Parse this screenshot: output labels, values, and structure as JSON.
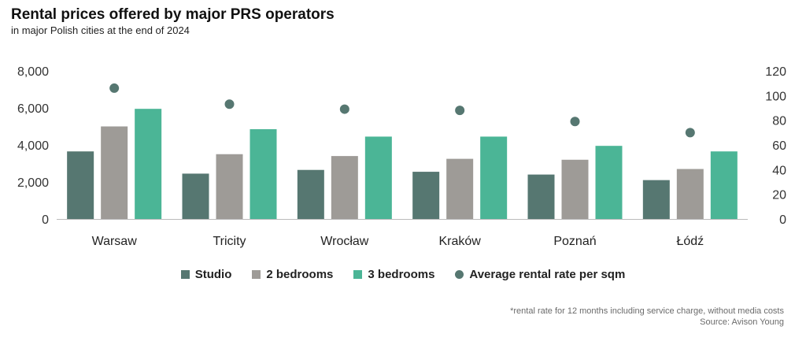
{
  "title": "Rental prices offered by major PRS operators",
  "subtitle": "in major Polish cities at the end of 2024",
  "note1": "*rental rate for 12 months including service charge, without media costs",
  "note2": "Source: Avison Young",
  "colors": {
    "studio": "#567771",
    "two_bed": "#9e9b97",
    "three_bed": "#4bb596",
    "avg": "#567771",
    "axis": "#bbbbbb"
  },
  "chart_data": {
    "type": "bar",
    "title": "Rental prices offered by major PRS operators",
    "subtitle": "in major Polish cities at the end of 2024",
    "categories": [
      "Warsaw",
      "Tricity",
      "Wrocław",
      "Kraków",
      "Poznań",
      "Łódź"
    ],
    "series": [
      {
        "name": "Studio",
        "type": "bar",
        "axis": "left",
        "values": [
          3650,
          2450,
          2650,
          2550,
          2400,
          2100
        ]
      },
      {
        "name": "2 bedrooms",
        "type": "bar",
        "axis": "left",
        "values": [
          5000,
          3500,
          3400,
          3250,
          3200,
          2700
        ]
      },
      {
        "name": "3 bedrooms",
        "type": "bar",
        "axis": "left",
        "values": [
          5950,
          4850,
          4450,
          4450,
          3950,
          3650
        ]
      },
      {
        "name": "Average rental rate per sqm",
        "type": "scatter",
        "axis": "right",
        "values": [
          106,
          93,
          89,
          88,
          79,
          70
        ]
      }
    ],
    "ylim": [
      0,
      8000
    ],
    "yticks": [
      "0",
      "2,000",
      "4,000",
      "6,000",
      "8,000"
    ],
    "y2lim": [
      0,
      120
    ],
    "y2ticks": [
      "0",
      "20",
      "40",
      "60",
      "80",
      "100",
      "120"
    ],
    "legend": "bottom",
    "grid": false
  }
}
